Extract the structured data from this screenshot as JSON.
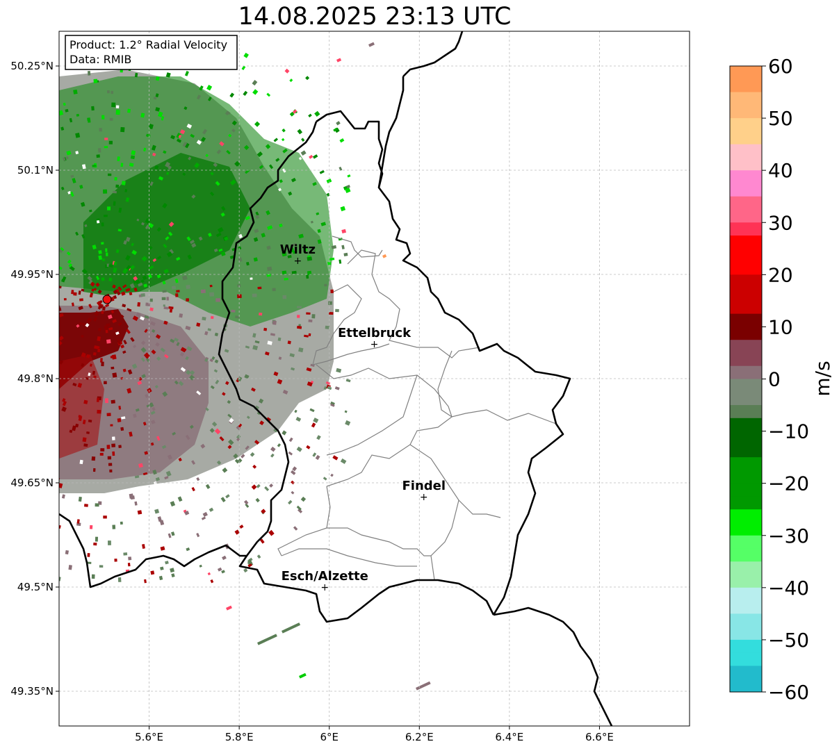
{
  "title": "14.08.2025 23:13 UTC",
  "info": {
    "product": "Product: 1.2° Radial Velocity",
    "data": "Data: RMIB"
  },
  "axes": {
    "lon_ticks": [
      "5.6°E",
      "5.8°E",
      "6°E",
      "6.2°E",
      "6.4°E",
      "6.6°E"
    ],
    "lat_ticks": [
      "50.25°N",
      "50.1°N",
      "49.95°N",
      "49.8°N",
      "49.65°N",
      "49.5°N",
      "49.35°N"
    ],
    "lon_range": [
      5.4,
      6.8
    ],
    "lat_range": [
      49.3,
      50.3
    ],
    "grid": true
  },
  "cities": [
    {
      "name": "Wiltz",
      "lon": 5.93,
      "lat": 49.97
    },
    {
      "name": "Ettelbruck",
      "lon": 6.1,
      "lat": 49.85
    },
    {
      "name": "Findel",
      "lon": 6.21,
      "lat": 49.63
    },
    {
      "name": "Esch/Alzette",
      "lon": 5.99,
      "lat": 49.5
    }
  ],
  "radar": {
    "lon": 5.505,
    "lat": 49.915
  },
  "colorbar": {
    "label": "m/s",
    "ticks": [
      "60",
      "50",
      "40",
      "30",
      "20",
      "10",
      "0",
      "−10",
      "−20",
      "−30",
      "−40",
      "−50",
      "−60"
    ],
    "range": [
      -60,
      60
    ],
    "stops": [
      {
        "v": 60,
        "c": "#ff9955"
      },
      {
        "v": 55,
        "c": "#ffb877"
      },
      {
        "v": 50,
        "c": "#ffd08a"
      },
      {
        "v": 45,
        "c": "#ffc0c8"
      },
      {
        "v": 40,
        "c": "#ff88d0"
      },
      {
        "v": 35,
        "c": "#ff6688"
      },
      {
        "v": 30,
        "c": "#ff3355"
      },
      {
        "v": 27,
        "c": "#ff0000"
      },
      {
        "v": 20,
        "c": "#cc0000"
      },
      {
        "v": 12,
        "c": "#7a0000"
      },
      {
        "v": 8,
        "c": "#884455"
      },
      {
        "v": 3,
        "c": "#8a6f77"
      },
      {
        "v": 0,
        "c": "#7a8a78"
      },
      {
        "v": -5,
        "c": "#5a7e55"
      },
      {
        "v": -8,
        "c": "#006600"
      },
      {
        "v": -15,
        "c": "#009900"
      },
      {
        "v": -25,
        "c": "#00ee00"
      },
      {
        "v": -30,
        "c": "#55ff66"
      },
      {
        "v": -35,
        "c": "#99f0aa"
      },
      {
        "v": -40,
        "c": "#b8eeee"
      },
      {
        "v": -45,
        "c": "#88e6e6"
      },
      {
        "v": -50,
        "c": "#33dddd"
      },
      {
        "v": -55,
        "c": "#22bbcc"
      },
      {
        "v": -60,
        "c": "#2288cc"
      }
    ]
  }
}
